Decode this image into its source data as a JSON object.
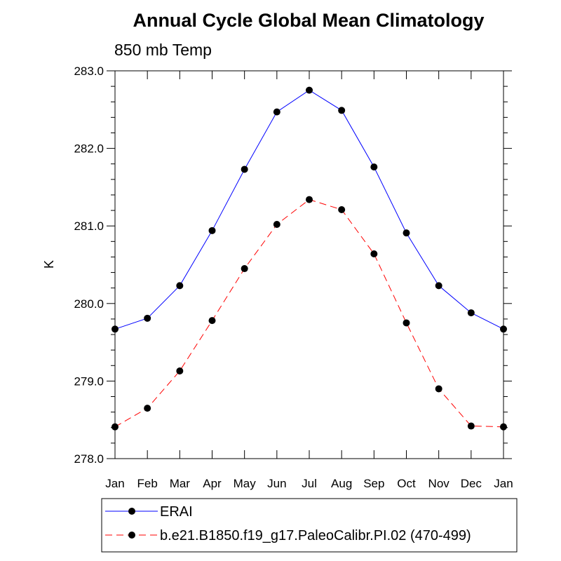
{
  "chart_data": {
    "type": "line",
    "title": "Annual Cycle Global Mean Climatology",
    "subtitle": "850 mb Temp",
    "xlabel": "",
    "ylabel": "K",
    "categories": [
      "Jan",
      "Feb",
      "Mar",
      "Apr",
      "May",
      "Jun",
      "Jul",
      "Aug",
      "Sep",
      "Oct",
      "Nov",
      "Dec",
      "Jan"
    ],
    "ylim": [
      278.0,
      283.0
    ],
    "yticks": [
      "278.0",
      "279.0",
      "280.0",
      "281.0",
      "282.0",
      "283.0"
    ],
    "series": [
      {
        "name": "ERAI",
        "color": "#0000ff",
        "line_style": "solid",
        "marker": "filled-circle",
        "values": [
          279.67,
          279.81,
          280.23,
          280.94,
          281.73,
          282.47,
          282.75,
          282.49,
          281.76,
          280.91,
          280.23,
          279.88,
          279.67
        ]
      },
      {
        "name": "b.e21.B1850.f19_g17.PaleoCalibr.PI.02 (470-499)",
        "color": "#ff0000",
        "line_style": "dashed",
        "marker": "filled-circle",
        "values": [
          278.41,
          278.65,
          279.13,
          279.78,
          280.45,
          281.02,
          281.34,
          281.21,
          280.64,
          279.75,
          278.9,
          278.42,
          278.41
        ]
      }
    ],
    "grid": false,
    "legend": "bottom"
  }
}
